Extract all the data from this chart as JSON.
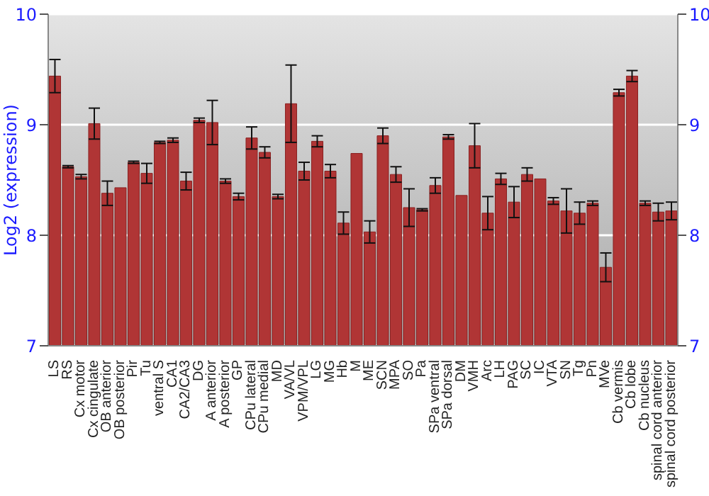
{
  "chart_data": {
    "type": "bar",
    "ylabel": "Log2 (expression)",
    "categories": [
      "LS",
      "RS",
      "Cx motor",
      "Cx cingulate",
      "OB anterior",
      "OB posterior",
      "Pir",
      "Tu",
      "ventral S",
      "CA1",
      "CA2/CA3",
      "DG",
      "A anterior",
      "A posterior",
      "GP",
      "CPu lateral",
      "CPu medial",
      "MD",
      "VA/VL",
      "VPM/VPL",
      "LG",
      "MG",
      "Hb",
      "M",
      "ME",
      "SCN",
      "MPA",
      "SO",
      "Pa",
      "SPa ventral",
      "SPa dorsal",
      "DM",
      "VMH",
      "Arc",
      "LH",
      "PAG",
      "SC",
      "IC",
      "VTA",
      "SN",
      "Tg",
      "Pn",
      "MVe",
      "Cb vermis",
      "Cb lobe",
      "Cb nucleus",
      "spinal cord anterior",
      "spinal cord posterior"
    ],
    "values": [
      9.44,
      8.62,
      8.53,
      9.01,
      8.38,
      8.43,
      8.66,
      8.56,
      8.84,
      8.86,
      8.49,
      9.04,
      9.02,
      8.49,
      8.35,
      8.88,
      8.75,
      8.35,
      9.19,
      8.58,
      8.85,
      8.58,
      8.11,
      8.74,
      8.03,
      8.9,
      8.55,
      8.25,
      8.23,
      8.45,
      8.89,
      8.36,
      8.81,
      8.2,
      8.51,
      8.3,
      8.55,
      8.51,
      8.31,
      8.22,
      8.2,
      8.29,
      7.71,
      9.29,
      9.44,
      8.29,
      8.21,
      8.22
    ],
    "errors": [
      0.15,
      0.01,
      0.02,
      0.14,
      0.11,
      null,
      0.01,
      0.09,
      0.01,
      0.02,
      0.08,
      0.02,
      0.2,
      0.02,
      0.03,
      0.1,
      0.05,
      0.02,
      0.35,
      0.08,
      0.05,
      0.06,
      0.1,
      null,
      0.1,
      0.07,
      0.07,
      0.17,
      0.01,
      0.07,
      0.02,
      null,
      0.2,
      0.15,
      0.05,
      0.14,
      0.06,
      null,
      0.03,
      0.2,
      0.1,
      0.02,
      0.13,
      0.03,
      0.05,
      0.02,
      0.08,
      0.08
    ],
    "color": "#b03535",
    "ylim": [
      7,
      10
    ],
    "yticks": [
      7,
      8,
      9,
      10
    ],
    "y2lim": [
      7,
      10
    ],
    "y2ticks": [
      7,
      8,
      9,
      10
    ],
    "grid": "y"
  }
}
